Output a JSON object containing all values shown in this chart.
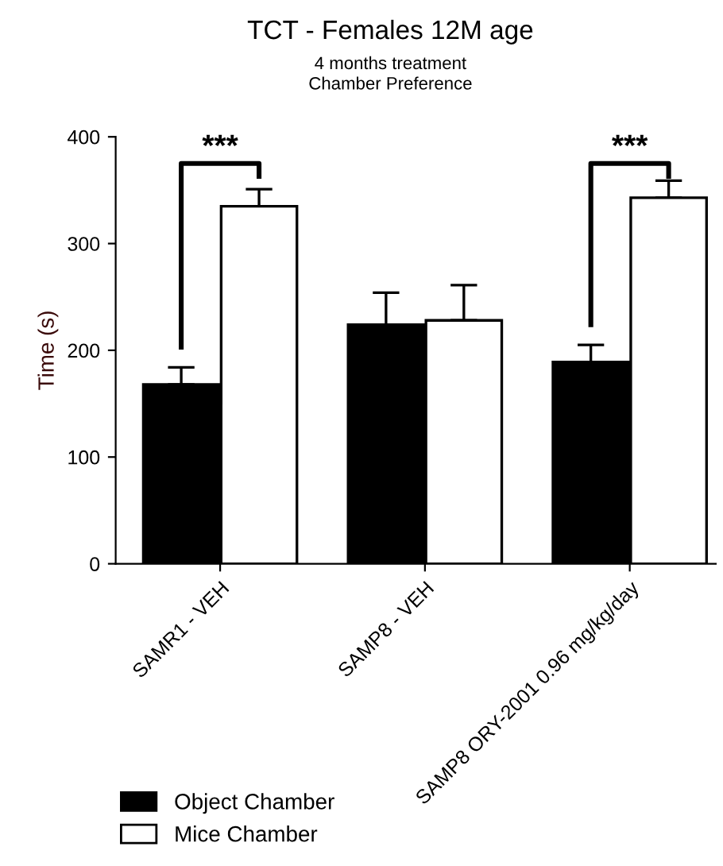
{
  "chart_data": {
    "type": "bar",
    "title": "TCT - Females 12M age",
    "subtitle": "4 months treatment\nChamber Preference",
    "ylabel": "Time (s)",
    "categories": [
      "SAMR1 - VEH",
      "SAMP8 - VEH",
      "SAMP8 ORY-2001 0.96 mg/kg/day"
    ],
    "series": [
      {
        "name": "Object Chamber",
        "color": "#000000",
        "values": [
          168,
          224,
          189
        ],
        "errors": [
          16,
          30,
          16
        ]
      },
      {
        "name": "Mice Chamber",
        "color": "#ffffff",
        "values": [
          335,
          228,
          343
        ],
        "errors": [
          16,
          33,
          16
        ]
      }
    ],
    "ylim": [
      0,
      400
    ],
    "yticks": [
      0,
      100,
      200,
      300,
      400
    ],
    "grid": false,
    "legend": "bottom left",
    "annotations": [
      "***",
      "***"
    ]
  }
}
